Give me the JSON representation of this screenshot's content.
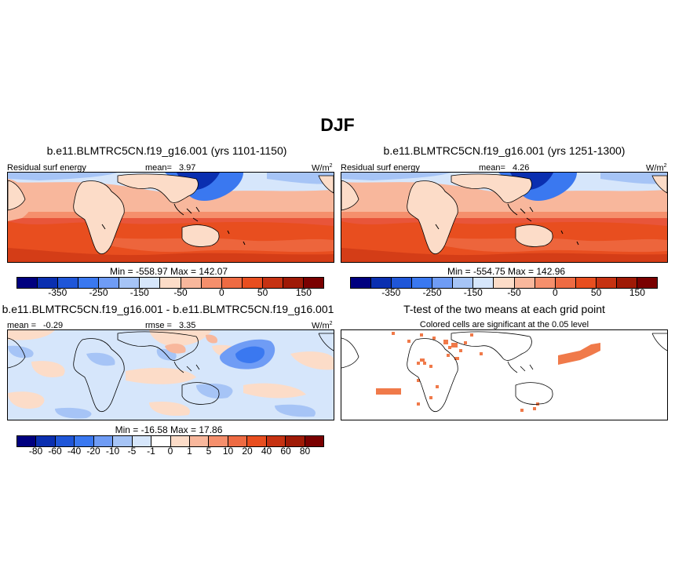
{
  "figure": {
    "title": "DJF"
  },
  "panels": [
    {
      "title": "b.e11.BLMTRC5CN.f19_g16.001 (yrs 1101-1150)",
      "left_label": "Residual surf energy",
      "center_label": "mean=",
      "center_value": "3.97",
      "units_base": "W/m",
      "units_exp": "2",
      "minmax": "Min = -558.97 Max = 142.07",
      "colorbar_ticks": [
        "-350",
        "-250",
        "-150",
        "-50",
        "0",
        "50",
        "150"
      ]
    },
    {
      "title": "b.e11.BLMTRC5CN.f19_g16.001 (yrs 1251-1300)",
      "left_label": "Residual surf energy",
      "center_label": "mean=",
      "center_value": "4.26",
      "units_base": "W/m",
      "units_exp": "2",
      "minmax": "Min = -554.75 Max = 142.96",
      "colorbar_ticks": [
        "-350",
        "-250",
        "-150",
        "-50",
        "0",
        "50",
        "150"
      ]
    },
    {
      "title": "b.e11.BLMTRC5CN.f19_g16.001 - b.e11.BLMTRC5CN.f19_g16.001",
      "left_label": "mean =",
      "left_value": "-0.29",
      "center_label": "rmse =",
      "center_value": "3.35",
      "units_base": "W/m",
      "units_exp": "2",
      "minmax": "Min = -16.58 Max = 17.86",
      "colorbar_ticks": [
        "-80",
        "-60",
        "-40",
        "-20",
        "-10",
        "-5",
        "-1",
        "0",
        "1",
        "5",
        "10",
        "20",
        "40",
        "60",
        "80"
      ]
    },
    {
      "title": "T-test of the two means at each grid point",
      "subtitle": "Colored cells are significant at the 0.05 level"
    }
  ],
  "colors": {
    "cbar_main": [
      "#00007f",
      "#0a2fb0",
      "#1f56d8",
      "#3a78f0",
      "#6f9cf5",
      "#a6c4f6",
      "#d6e6fb",
      "#fcdcc8",
      "#f8b79c",
      "#f58f6c",
      "#ee6b43",
      "#e84e1f",
      "#c63212",
      "#9f1a06",
      "#7a0000"
    ],
    "cbar_diff": [
      "#00007f",
      "#0a2fb0",
      "#1f56d8",
      "#3a78f0",
      "#6f9cf5",
      "#a6c4f6",
      "#d6e6fb",
      "#ffffff",
      "#fcdcc8",
      "#f8b79c",
      "#f58f6c",
      "#ee6b43",
      "#e84e1f",
      "#c63212",
      "#9f1a06",
      "#7a0000"
    ],
    "significant_cell": "#f07a4a"
  }
}
